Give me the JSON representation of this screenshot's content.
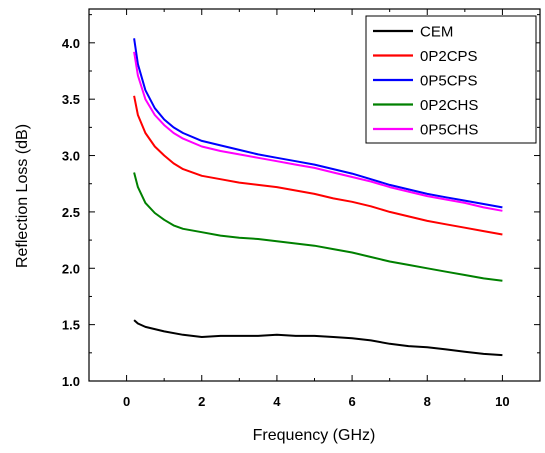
{
  "chart_data": {
    "type": "line",
    "title": "",
    "xlabel": "Frequency (GHz)",
    "ylabel": "Reflection Loss (dB)",
    "xlim": [
      -1,
      11
    ],
    "ylim": [
      1.0,
      4.3
    ],
    "x_ticks": [
      0,
      2,
      4,
      6,
      8,
      10
    ],
    "x_tick_labels": [
      "0",
      "2",
      "4",
      "6",
      "8",
      "10"
    ],
    "y_ticks": [
      1.0,
      1.5,
      2.0,
      2.5,
      3.0,
      3.5,
      4.0
    ],
    "y_tick_labels": [
      "1.0",
      "1.5",
      "2.0",
      "2.5",
      "3.0",
      "3.5",
      "4.0"
    ],
    "grid": false,
    "legend_position": "top-right",
    "series": [
      {
        "name": "CEM",
        "color": "#000000",
        "x": [
          0.2,
          0.3,
          0.5,
          1.0,
          1.5,
          2.0,
          2.5,
          3.0,
          3.5,
          4.0,
          4.5,
          5.0,
          5.5,
          6.0,
          6.5,
          7.0,
          7.5,
          8.0,
          8.5,
          9.0,
          9.5,
          10.0
        ],
        "y": [
          1.54,
          1.51,
          1.48,
          1.44,
          1.41,
          1.39,
          1.4,
          1.4,
          1.4,
          1.41,
          1.4,
          1.4,
          1.39,
          1.38,
          1.36,
          1.33,
          1.31,
          1.3,
          1.28,
          1.26,
          1.24,
          1.23
        ]
      },
      {
        "name": "0P2CPS",
        "color": "#ff0000",
        "x": [
          0.2,
          0.3,
          0.5,
          0.75,
          1.0,
          1.25,
          1.5,
          2.0,
          2.5,
          3.0,
          3.5,
          4.0,
          4.5,
          5.0,
          5.5,
          6.0,
          6.5,
          7.0,
          7.5,
          8.0,
          8.5,
          9.0,
          9.5,
          10.0
        ],
        "y": [
          3.53,
          3.36,
          3.2,
          3.08,
          3.0,
          2.93,
          2.88,
          2.82,
          2.79,
          2.76,
          2.74,
          2.72,
          2.69,
          2.66,
          2.62,
          2.59,
          2.55,
          2.5,
          2.46,
          2.42,
          2.39,
          2.36,
          2.33,
          2.3
        ]
      },
      {
        "name": "0P5CPS",
        "color": "#0000ff",
        "x": [
          0.2,
          0.3,
          0.5,
          0.75,
          1.0,
          1.25,
          1.5,
          2.0,
          2.5,
          3.0,
          3.5,
          4.0,
          4.5,
          5.0,
          5.5,
          6.0,
          6.5,
          7.0,
          7.5,
          8.0,
          8.5,
          9.0,
          9.5,
          10.0
        ],
        "y": [
          4.04,
          3.81,
          3.58,
          3.42,
          3.32,
          3.25,
          3.2,
          3.13,
          3.09,
          3.05,
          3.01,
          2.98,
          2.95,
          2.92,
          2.88,
          2.84,
          2.79,
          2.74,
          2.7,
          2.66,
          2.63,
          2.6,
          2.57,
          2.54
        ]
      },
      {
        "name": "0P2CHS",
        "color": "#008000",
        "x": [
          0.2,
          0.3,
          0.5,
          0.75,
          1.0,
          1.25,
          1.5,
          2.0,
          2.5,
          3.0,
          3.5,
          4.0,
          4.5,
          5.0,
          5.5,
          6.0,
          6.5,
          7.0,
          7.5,
          8.0,
          8.5,
          9.0,
          9.5,
          10.0
        ],
        "y": [
          2.85,
          2.72,
          2.58,
          2.49,
          2.43,
          2.38,
          2.35,
          2.32,
          2.29,
          2.27,
          2.26,
          2.24,
          2.22,
          2.2,
          2.17,
          2.14,
          2.1,
          2.06,
          2.03,
          2.0,
          1.97,
          1.94,
          1.91,
          1.89
        ]
      },
      {
        "name": "0P5CHS",
        "color": "#ff00ff",
        "x": [
          0.2,
          0.3,
          0.5,
          0.75,
          1.0,
          1.25,
          1.5,
          2.0,
          2.5,
          3.0,
          3.5,
          4.0,
          4.5,
          5.0,
          5.5,
          6.0,
          6.5,
          7.0,
          7.5,
          8.0,
          8.5,
          9.0,
          9.5,
          10.0
        ],
        "y": [
          3.92,
          3.71,
          3.5,
          3.36,
          3.27,
          3.2,
          3.15,
          3.08,
          3.04,
          3.01,
          2.98,
          2.95,
          2.92,
          2.89,
          2.85,
          2.81,
          2.77,
          2.72,
          2.68,
          2.64,
          2.61,
          2.58,
          2.54,
          2.51
        ]
      }
    ]
  }
}
